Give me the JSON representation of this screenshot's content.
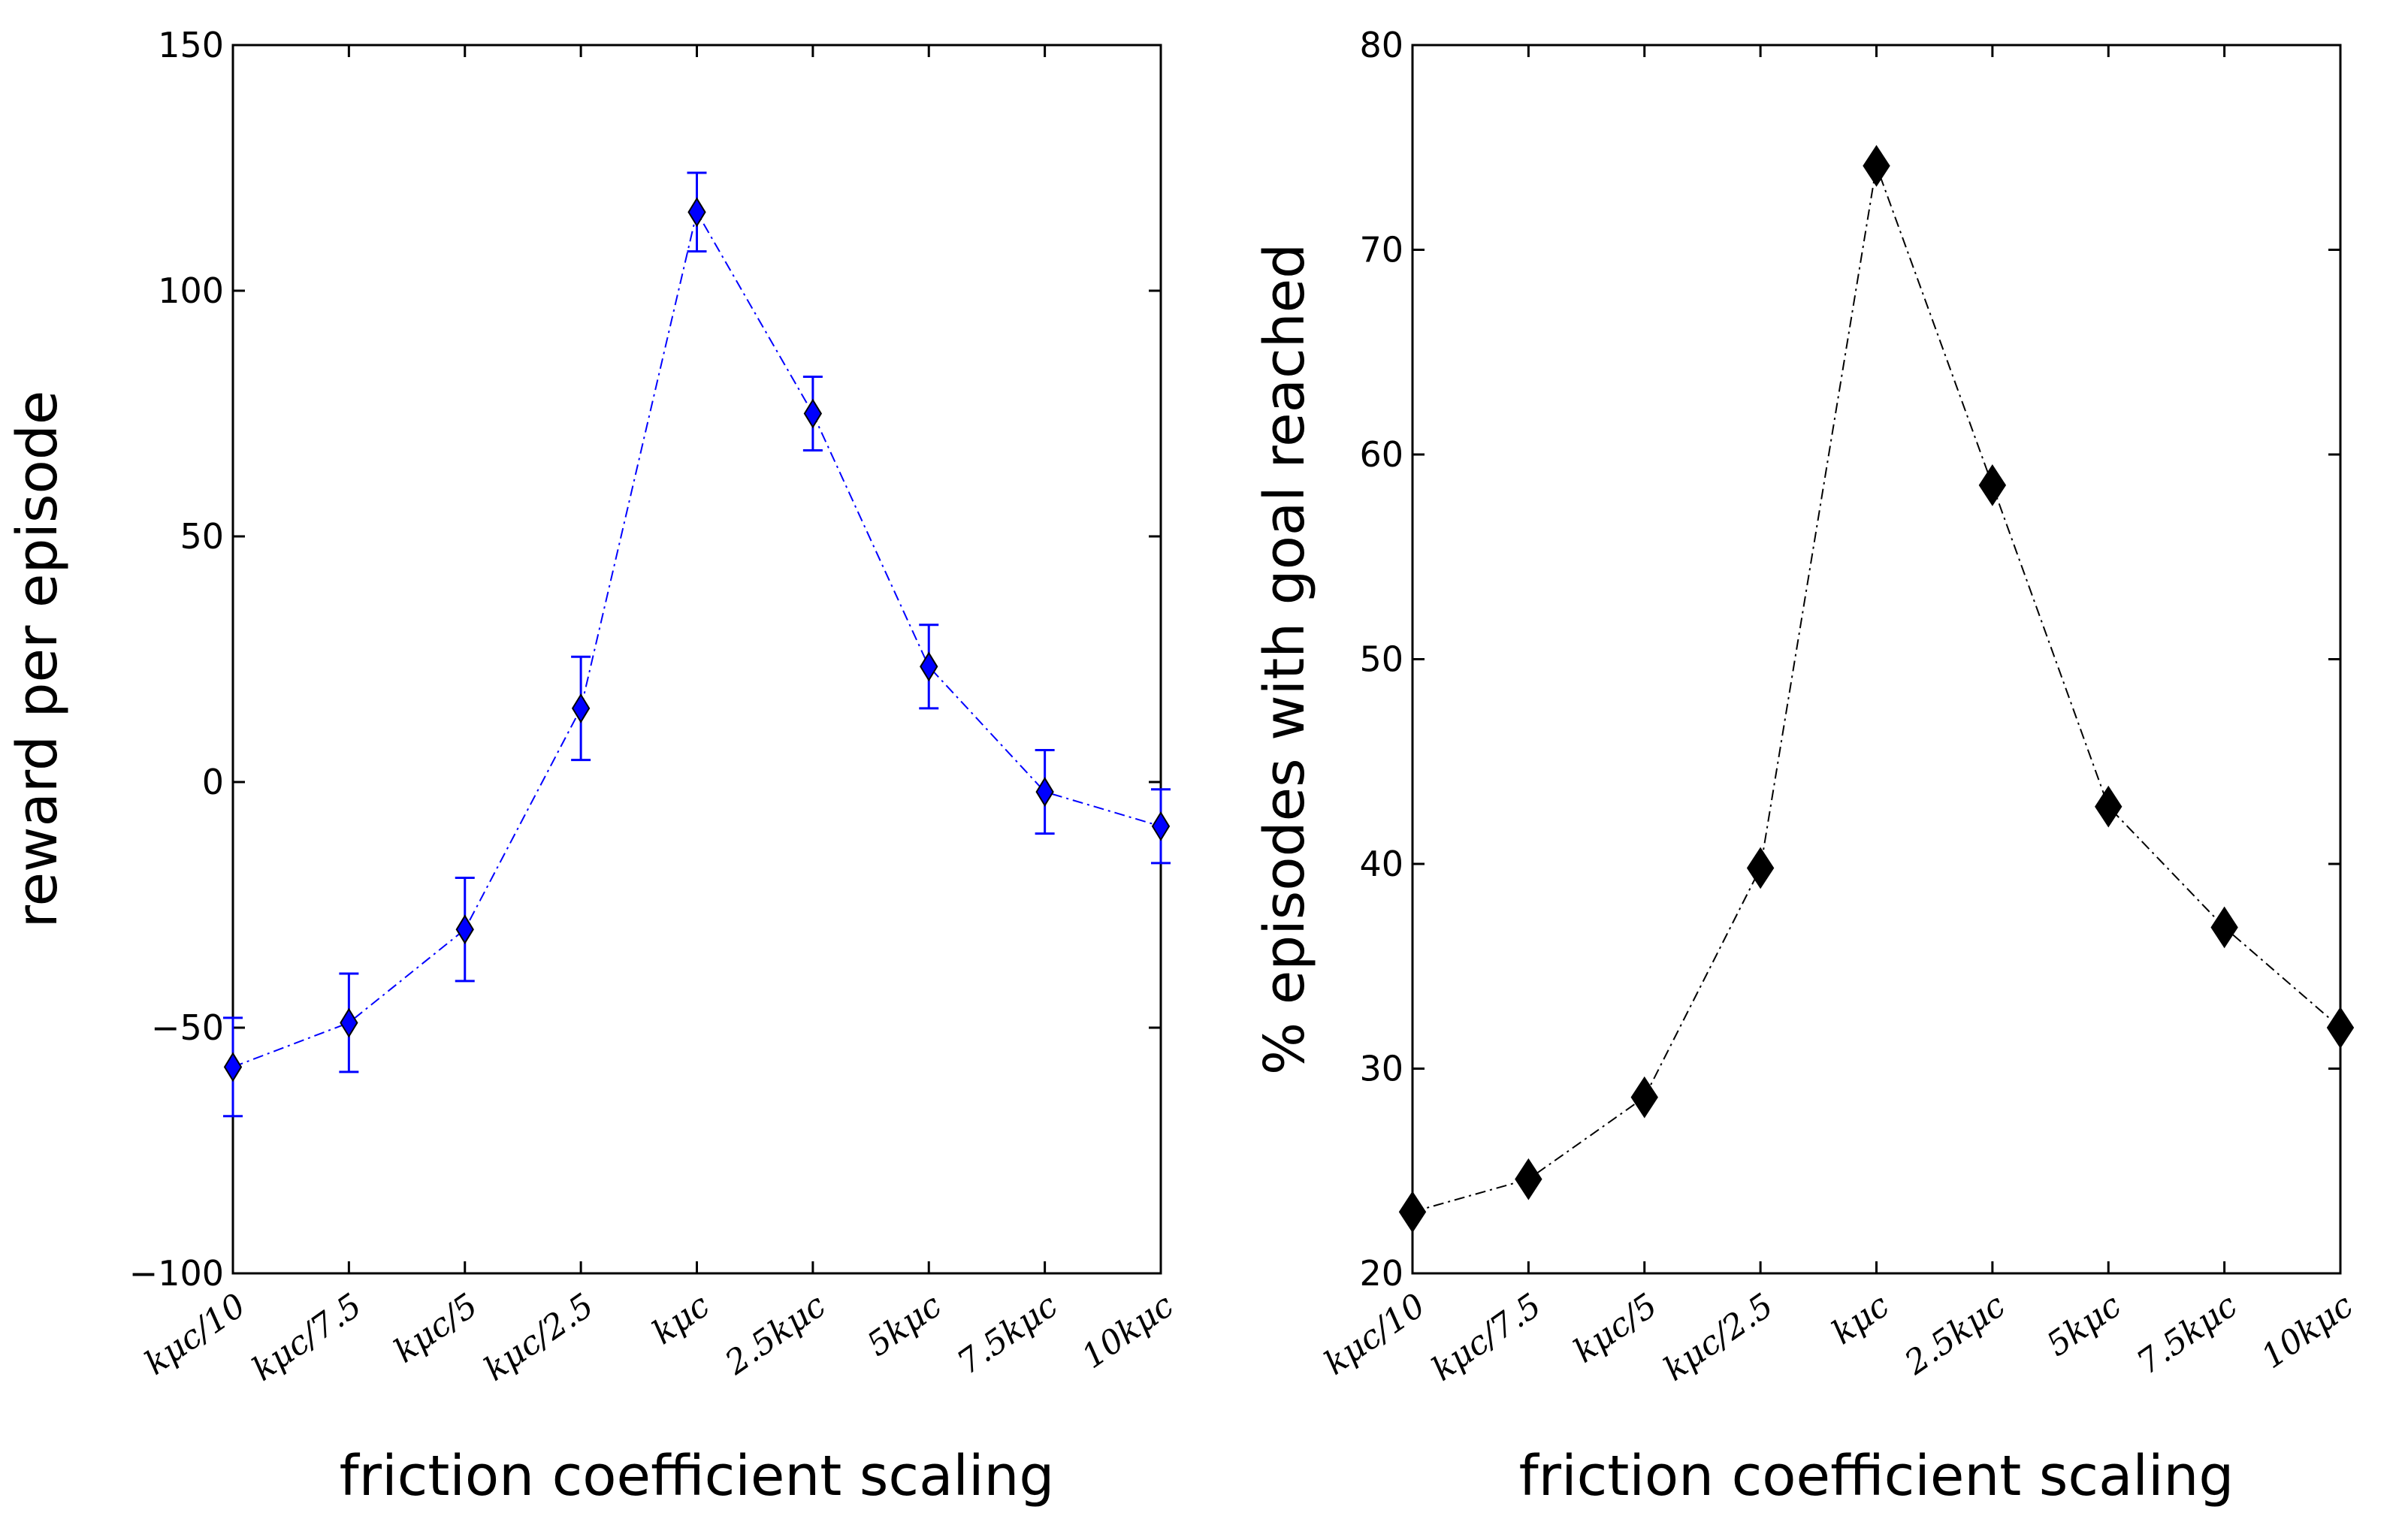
{
  "chart_data": [
    {
      "type": "line",
      "marker": "diamond",
      "error_bars": true,
      "title": "",
      "xlabel": "friction coefficient scaling",
      "ylabel": "reward per episode",
      "categories": [
        "kμc/10",
        "kμc/7.5",
        "kμc/5",
        "kμc/2.5",
        "kμc",
        "2.5kμc",
        "5kμc",
        "7.5kμc",
        "10kμc"
      ],
      "series": [
        {
          "name": "reward per episode",
          "color": "#0000ff",
          "values": [
            -58,
            -49,
            -30,
            15,
            116,
            75,
            23.5,
            -2,
            -9
          ],
          "errors": [
            10,
            10,
            10.5,
            10.5,
            8,
            7.5,
            8.5,
            8.5,
            7.5
          ]
        }
      ],
      "ylim": [
        -100,
        150
      ],
      "yticks": [
        -100,
        -50,
        0,
        50,
        100,
        150
      ],
      "ytick_labels": [
        "−100",
        "−50",
        "0",
        "50",
        "100",
        "150"
      ],
      "grid": false
    },
    {
      "type": "line",
      "marker": "diamond",
      "error_bars": false,
      "title": "",
      "xlabel": "friction coefficient scaling",
      "ylabel": "% episodes with goal reached",
      "categories": [
        "kμc/10",
        "kμc/7.5",
        "kμc/5",
        "kμc/2.5",
        "kμc",
        "2.5kμc",
        "5kμc",
        "7.5kμc",
        "10kμc"
      ],
      "series": [
        {
          "name": "% episodes with goal reached",
          "color": "#000000",
          "values": [
            23,
            24.6,
            28.6,
            39.8,
            74.1,
            58.5,
            42.8,
            36.9,
            32
          ]
        }
      ],
      "ylim": [
        20,
        80
      ],
      "yticks": [
        20,
        30,
        40,
        50,
        60,
        70,
        80
      ],
      "ytick_labels": [
        "20",
        "30",
        "40",
        "50",
        "60",
        "70",
        "80"
      ],
      "grid": false
    }
  ]
}
